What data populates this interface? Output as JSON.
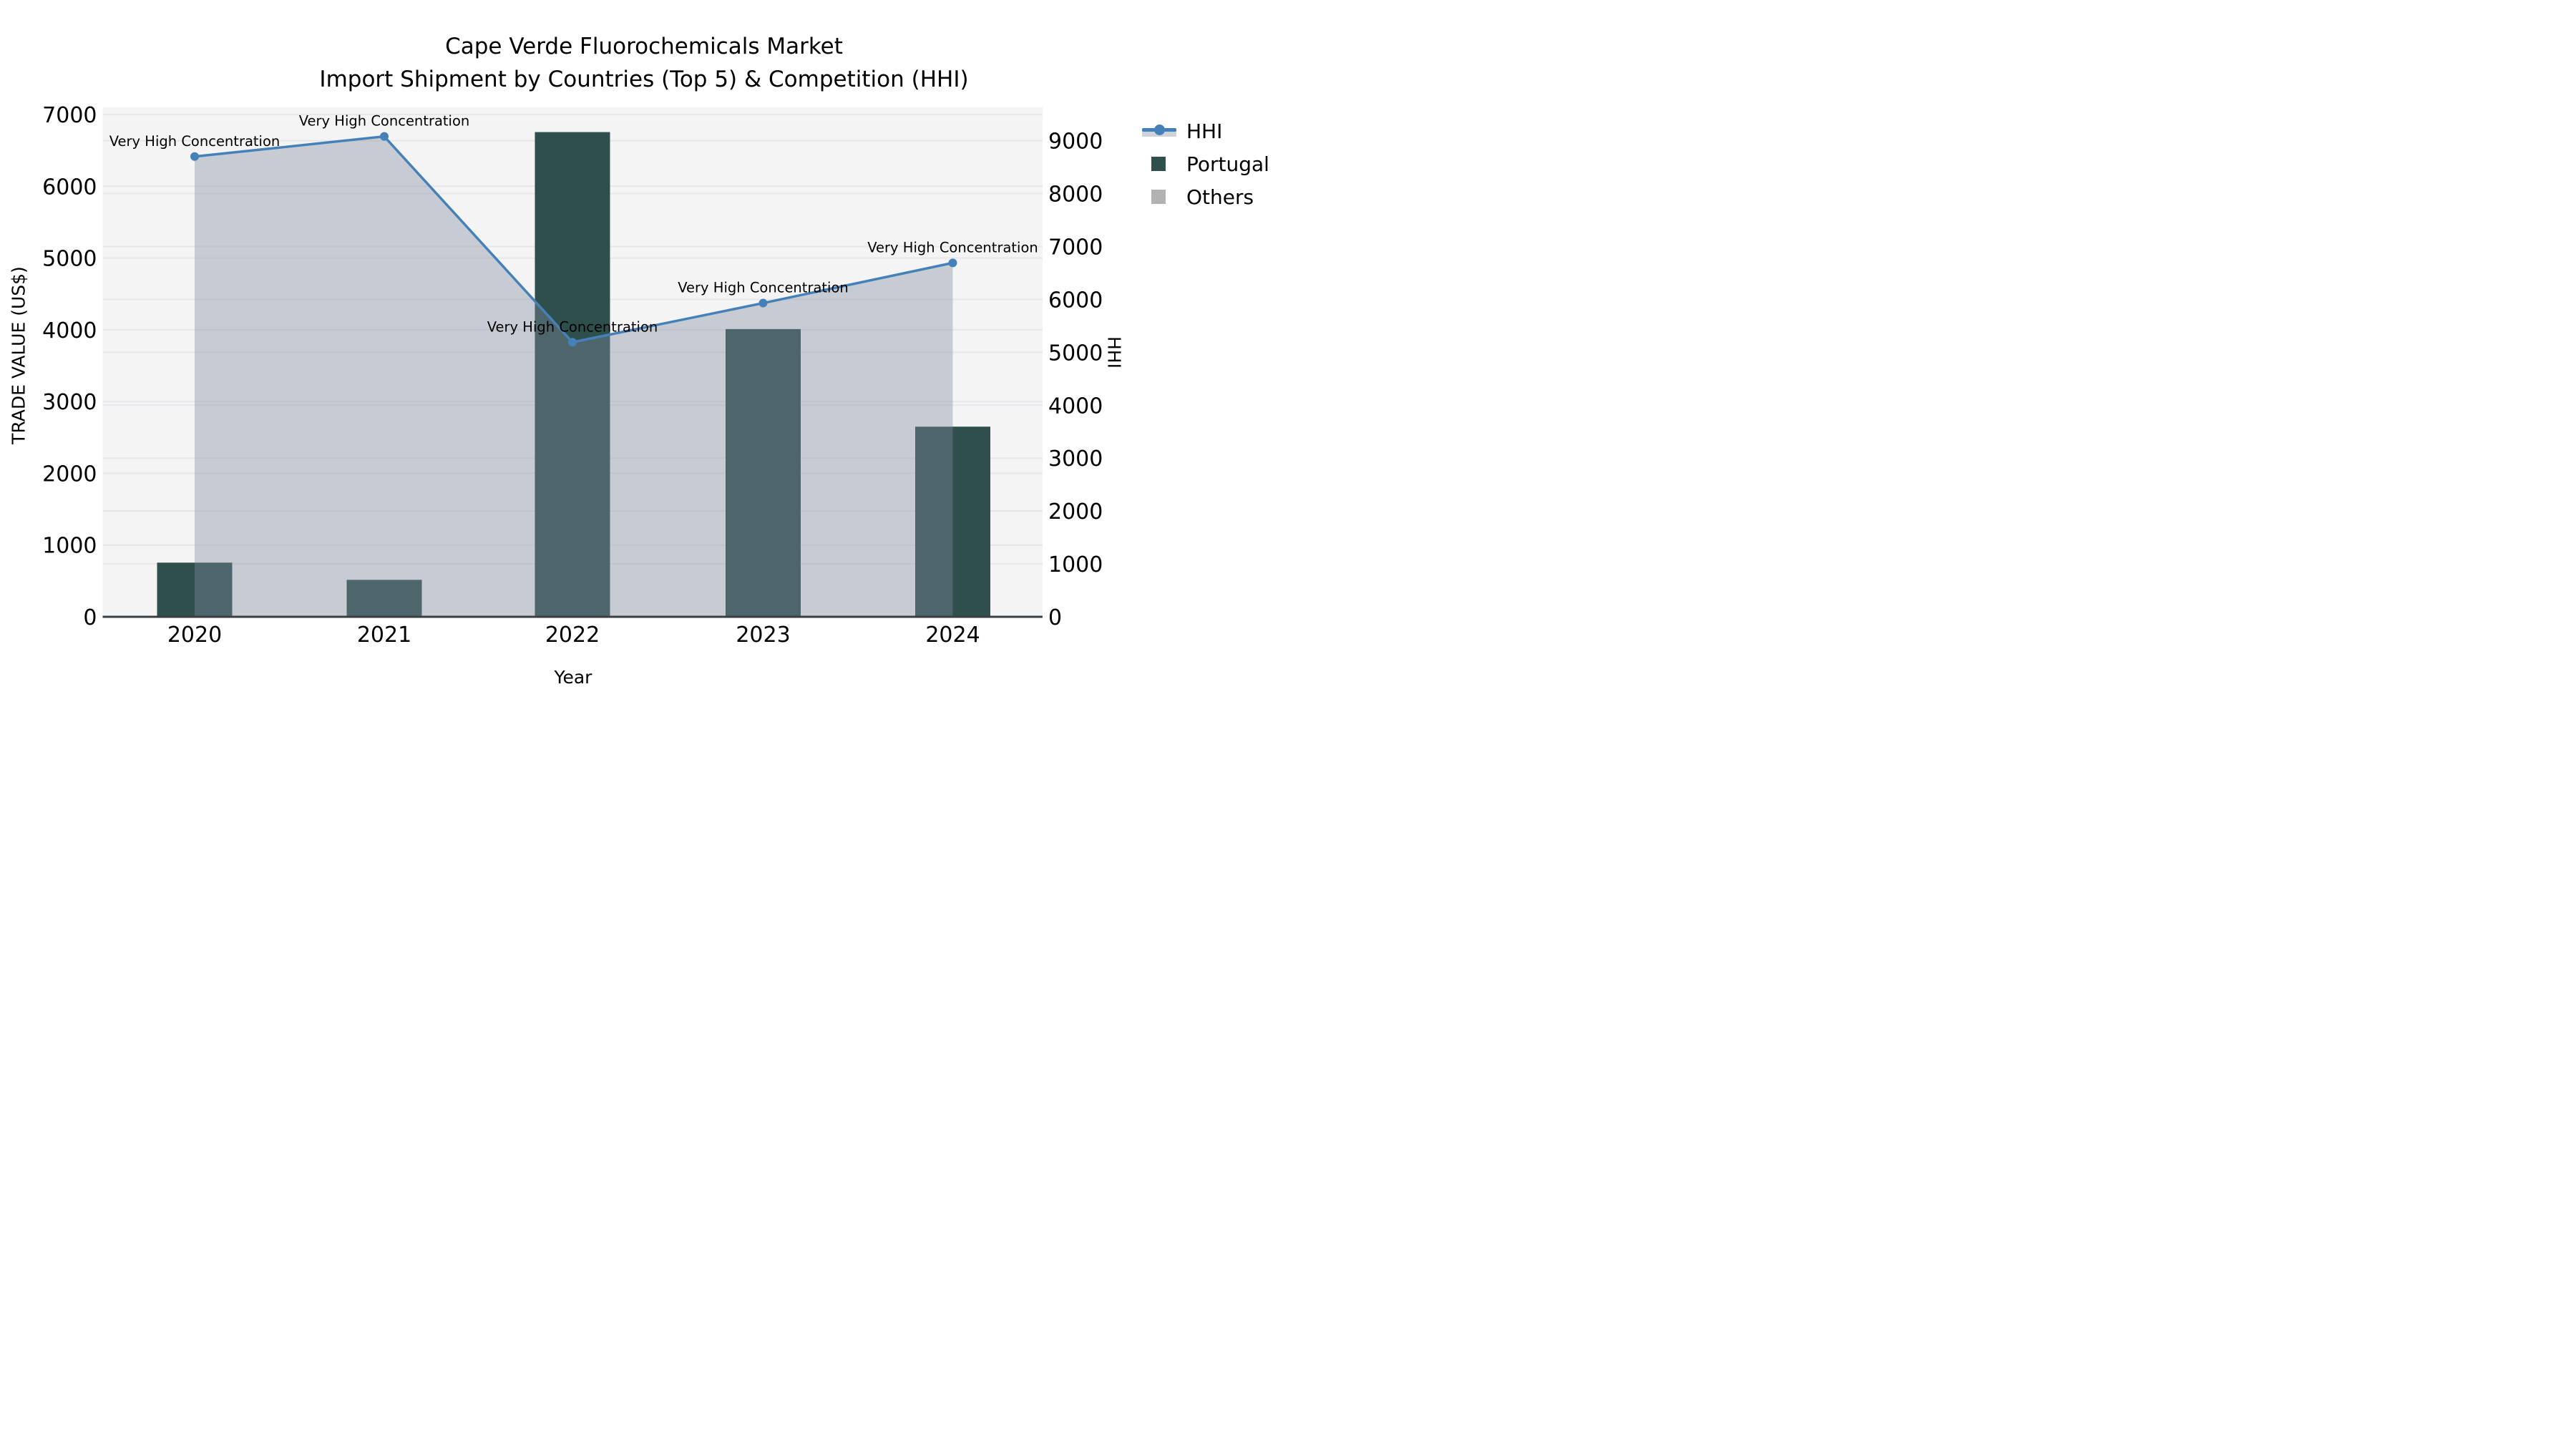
{
  "title": {
    "line1": "Cape Verde Fluorochemicals Market",
    "line2": "Import Shipment by Countries (Top 5) & Competition (HHI)"
  },
  "axes": {
    "x_label": "Year",
    "y_left_label": "TRADE VALUE (US$)",
    "y_right_label": "HHI",
    "x_ticks": [
      "2020",
      "2021",
      "2022",
      "2023",
      "2024"
    ],
    "y_left_ticks": [
      0,
      1000,
      2000,
      3000,
      4000,
      5000,
      6000,
      7000
    ],
    "y_right_ticks": [
      0,
      1000,
      2000,
      3000,
      4000,
      5000,
      6000,
      7000,
      8000,
      9000
    ]
  },
  "legend": {
    "items": [
      {
        "label": "HHI",
        "type": "line-marker"
      },
      {
        "label": "Portugal",
        "type": "square",
        "color": "#2f4f4d"
      },
      {
        "label": "Others",
        "type": "square",
        "color": "#b2b2b2"
      }
    ]
  },
  "colors": {
    "figure_background": "#ffffff",
    "plot_background": "#f4f4f5",
    "grid": "#e7e7e9",
    "axis_baseline": "#3a3e41",
    "bar_portugal": "#2f4f4d",
    "area_others_overlay": "rgba(126,140,158,0.38)",
    "others_legend_swatch": "#b2b2b2",
    "hhi_line": "#4581b8",
    "text": "#000000"
  },
  "chart_data": {
    "type": "bar",
    "subtype": "bar+line+area combo, dual axis",
    "title": "Cape Verde Fluorochemicals Market — Import Shipment by Countries (Top 5) & Competition (HHI)",
    "xlabel": "Year",
    "ylabel_left": "TRADE VALUE (US$)",
    "ylabel_right": "HHI",
    "categories": [
      "2020",
      "2021",
      "2022",
      "2023",
      "2024"
    ],
    "series": [
      {
        "name": "Portugal",
        "type": "bar",
        "axis": "left",
        "values": [
          755,
          515,
          6755,
          4010,
          2650
        ]
      },
      {
        "name": "Others",
        "type": "area",
        "axis": "right",
        "values": [
          8700,
          9080,
          5190,
          5930,
          6690
        ],
        "note": "translucent gray fill drawn under the HHI line from 2020 to 2024"
      },
      {
        "name": "HHI",
        "type": "line",
        "axis": "right",
        "values": [
          8700,
          9080,
          5190,
          5930,
          6690
        ]
      }
    ],
    "annotations": [
      {
        "category": "2020",
        "text": "Very High Concentration"
      },
      {
        "category": "2021",
        "text": "Very High Concentration"
      },
      {
        "category": "2022",
        "text": "Very High Concentration"
      },
      {
        "category": "2023",
        "text": "Very High Concentration"
      },
      {
        "category": "2024",
        "text": "Very High Concentration"
      }
    ],
    "ylim_left": [
      0,
      7100
    ],
    "ylim_right": [
      0,
      9630
    ],
    "grid": true,
    "legend_position": "outside-right-top"
  }
}
